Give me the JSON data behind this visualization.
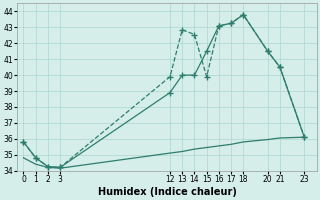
{
  "xlabel": "Humidex (Indice chaleur)",
  "bg_color": "#d5eeea",
  "grid_color": "#aed6ce",
  "line_color": "#2e7d6e",
  "ylim": [
    34,
    44.5
  ],
  "yticks": [
    34,
    35,
    36,
    37,
    38,
    39,
    40,
    41,
    42,
    43,
    44
  ],
  "xlim": [
    -0.5,
    24
  ],
  "xticks": [
    0,
    1,
    2,
    3,
    12,
    13,
    14,
    15,
    16,
    17,
    18,
    20,
    21,
    23
  ],
  "line1_x": [
    0,
    1,
    2,
    3,
    12,
    13,
    14,
    15,
    16,
    17,
    18,
    20,
    21,
    23
  ],
  "line1_y": [
    35.8,
    34.8,
    34.25,
    34.2,
    39.9,
    42.85,
    42.55,
    39.9,
    43.1,
    43.25,
    43.8,
    41.5,
    40.5,
    36.1
  ],
  "line2_x": [
    0,
    1,
    2,
    3,
    12,
    13,
    14,
    15,
    16,
    17,
    18,
    20,
    21,
    23
  ],
  "line2_y": [
    35.8,
    34.8,
    34.25,
    34.2,
    38.9,
    40.0,
    40.0,
    41.5,
    43.1,
    43.25,
    43.8,
    41.5,
    40.5,
    36.1
  ],
  "line3_x": [
    0,
    1,
    2,
    3,
    12,
    13,
    14,
    15,
    16,
    17,
    18,
    20,
    21,
    23
  ],
  "line3_y": [
    34.8,
    34.4,
    34.2,
    34.15,
    35.1,
    35.2,
    35.35,
    35.45,
    35.55,
    35.65,
    35.8,
    35.95,
    36.05,
    36.1
  ]
}
